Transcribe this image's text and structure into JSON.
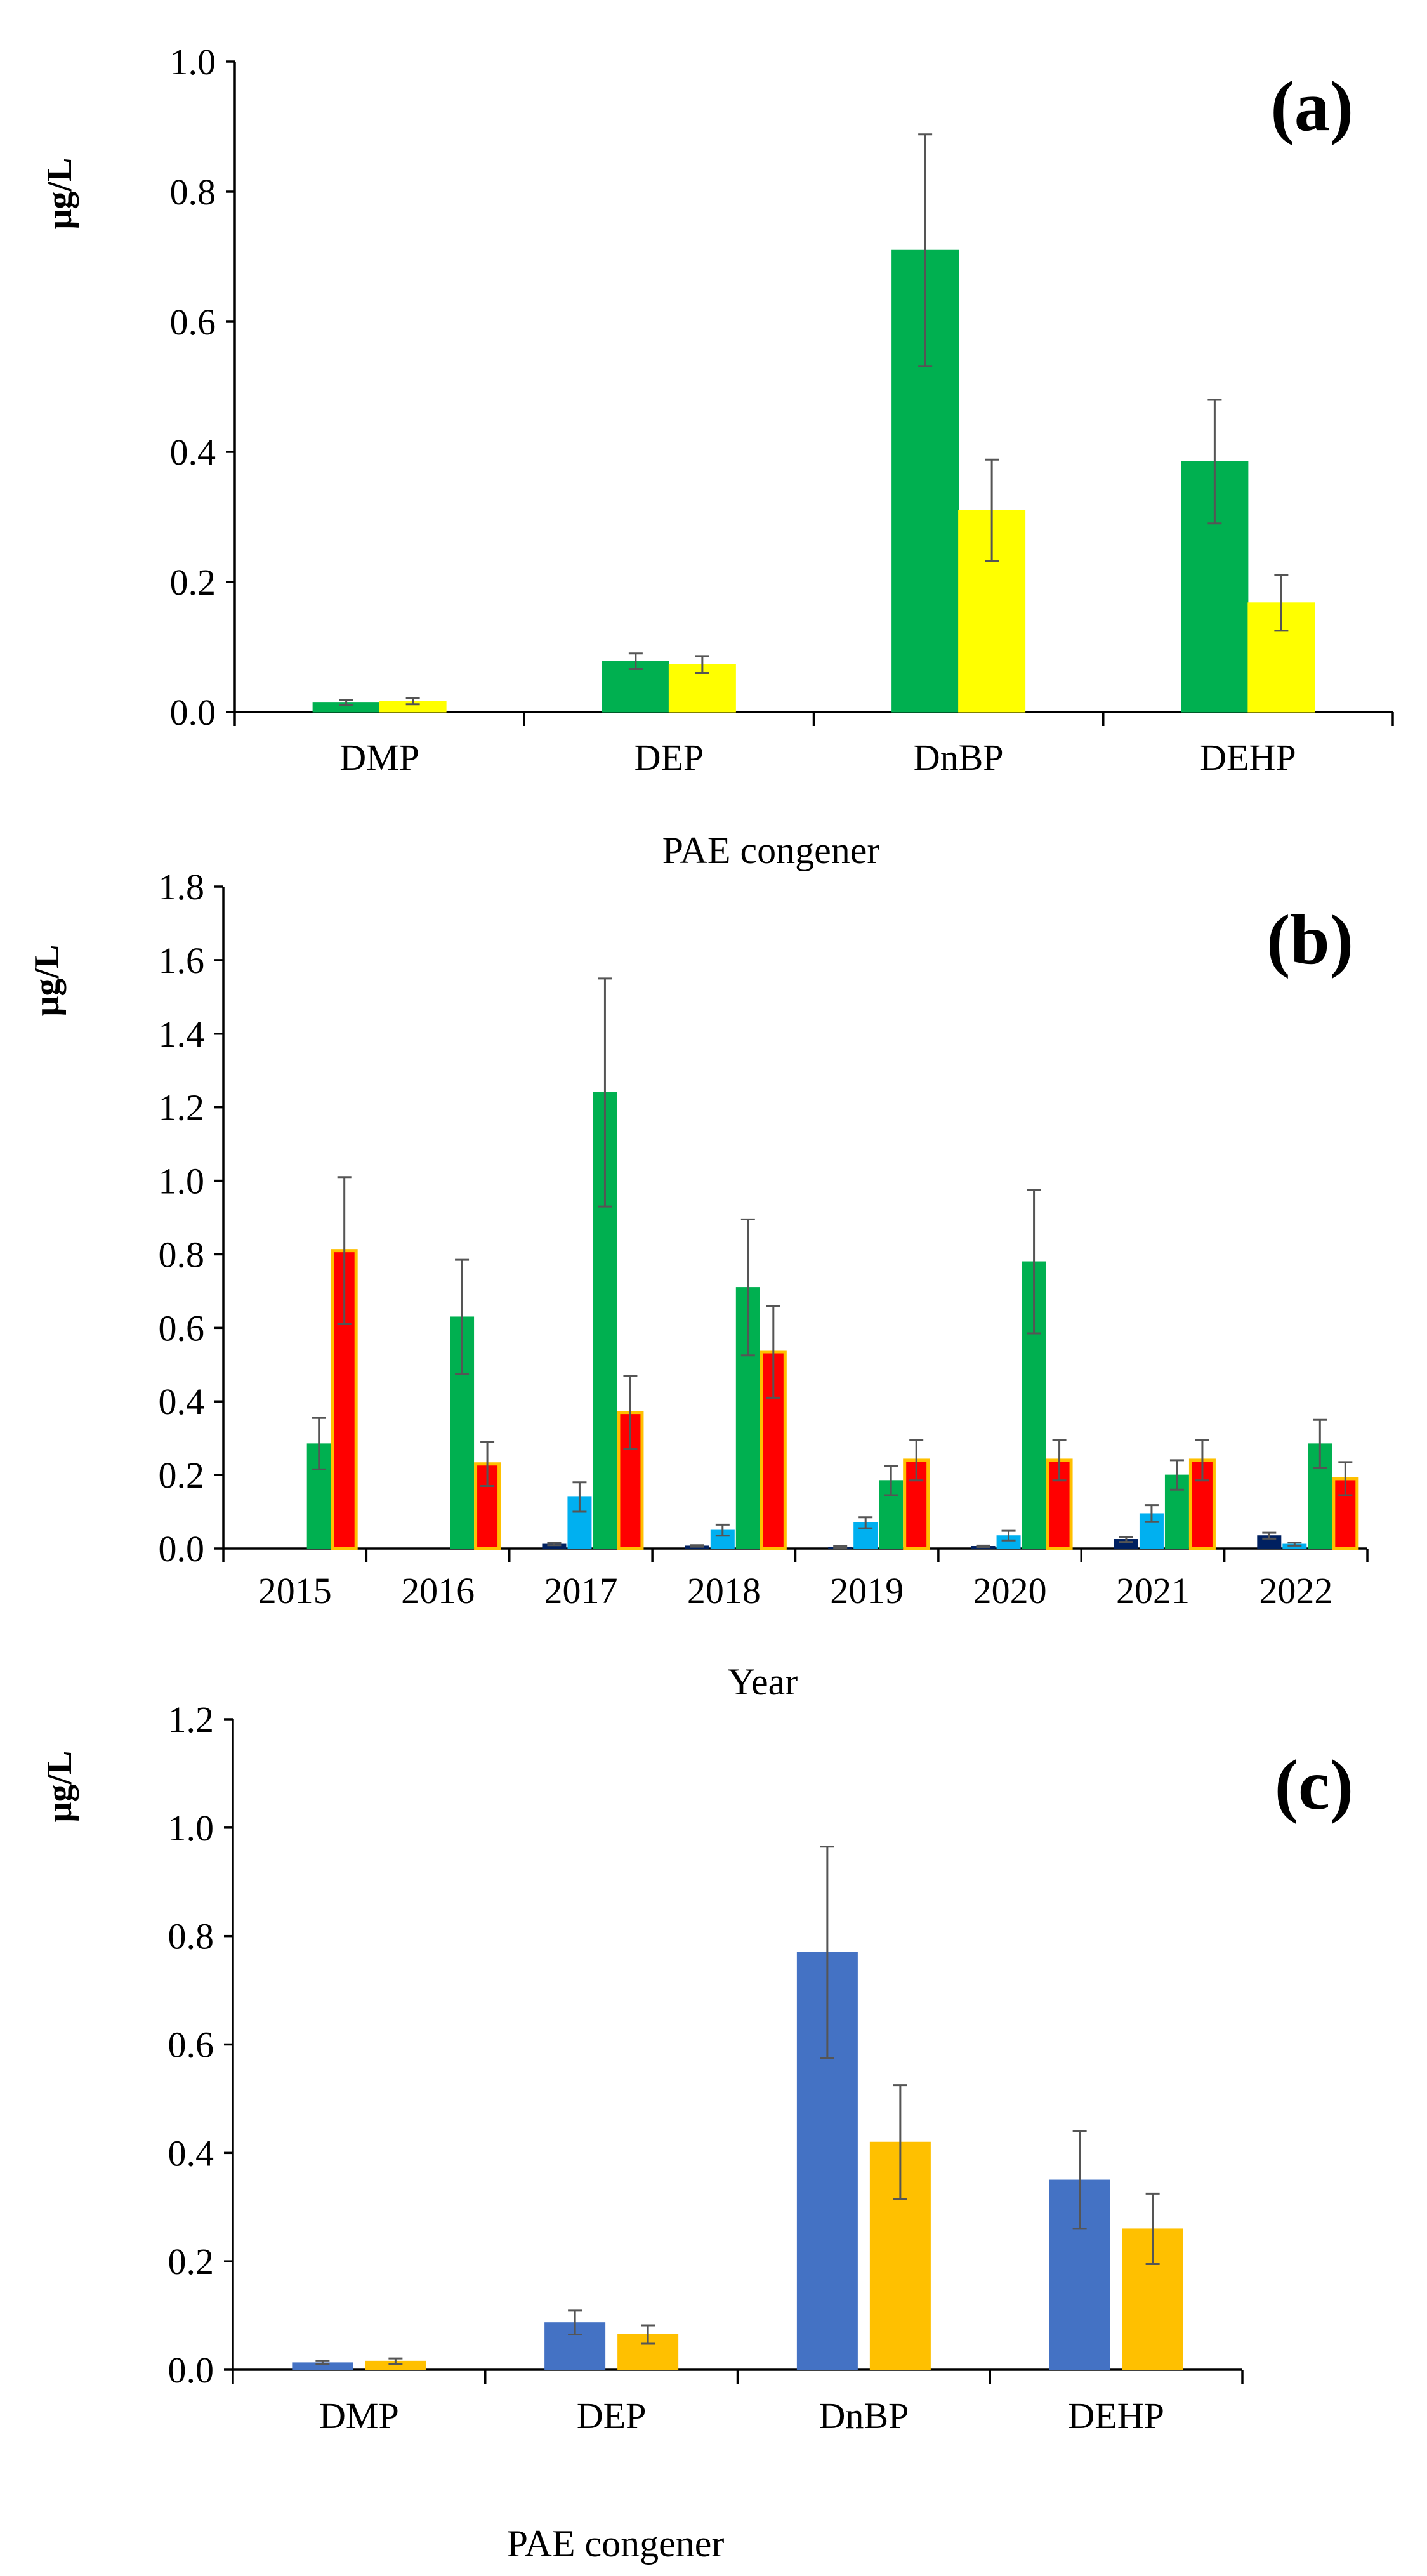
{
  "chart_data": [
    {
      "type": "bar",
      "panel_label": "(a)",
      "ylabel": "μg/L",
      "xlabel": "PAE congener",
      "ylim": [
        0,
        1.0
      ],
      "y_ticks": [
        "0.0",
        "0.2",
        "0.4",
        "0.6",
        "0.8",
        "1.0"
      ],
      "categories": [
        "DMP",
        "DEP",
        "DnBP",
        "DEHP"
      ],
      "series": [
        {
          "values": [
            0.015,
            0.078,
            0.71,
            0.385
          ],
          "errors": [
            0.004,
            0.012,
            0.178,
            0.095
          ],
          "color": "#00b050",
          "edge": "#00b050"
        },
        {
          "values": [
            0.017,
            0.073,
            0.31,
            0.168
          ],
          "errors": [
            0.005,
            0.013,
            0.078,
            0.043
          ],
          "color": "#ffff00",
          "edge": "#ffff00"
        }
      ]
    },
    {
      "type": "bar",
      "panel_label": "(b)",
      "ylabel": "μg/L",
      "xlabel": "Year",
      "ylim": [
        0,
        1.8
      ],
      "y_ticks": [
        "0.0",
        "0.2",
        "0.4",
        "0.6",
        "0.8",
        "1.0",
        "1.2",
        "1.4",
        "1.6",
        "1.8"
      ],
      "categories": [
        "2015",
        "2016",
        "2017",
        "2018",
        "2019",
        "2020",
        "2021",
        "2022"
      ],
      "series": [
        {
          "values": [
            0,
            0,
            0.012,
            0.007,
            0.004,
            0.006,
            0.025,
            0.035
          ],
          "errors": [
            0,
            0,
            0.003,
            0.002,
            0.002,
            0.002,
            0.007,
            0.008
          ],
          "color": "#002060",
          "edge": "#002060"
        },
        {
          "values": [
            0,
            0,
            0.14,
            0.05,
            0.07,
            0.035,
            0.095,
            0.012
          ],
          "errors": [
            0,
            0,
            0.04,
            0.015,
            0.015,
            0.013,
            0.023,
            0.004
          ],
          "color": "#00b0f0",
          "edge": "#00b0f0"
        },
        {
          "values": [
            0.285,
            0.63,
            1.24,
            0.71,
            0.185,
            0.78,
            0.2,
            0.285
          ],
          "errors": [
            0.07,
            0.155,
            0.31,
            0.185,
            0.04,
            0.195,
            0.04,
            0.065
          ],
          "color": "#00b050",
          "edge": "#00b050"
        },
        {
          "values": [
            0.81,
            0.23,
            0.37,
            0.535,
            0.24,
            0.24,
            0.24,
            0.19
          ],
          "errors": [
            0.2,
            0.06,
            0.1,
            0.125,
            0.055,
            0.055,
            0.055,
            0.045
          ],
          "color": "#ff0000",
          "edge": "#ffc000"
        }
      ]
    },
    {
      "type": "bar",
      "panel_label": "(c)",
      "ylabel": "μg/L",
      "xlabel": "PAE congener",
      "ylim": [
        0,
        1.2
      ],
      "y_ticks": [
        "0.0",
        "0.2",
        "0.4",
        "0.6",
        "0.8",
        "1.0",
        "1.2"
      ],
      "categories": [
        "DMP",
        "DEP",
        "DnBP",
        "DEHP"
      ],
      "series": [
        {
          "values": [
            0.013,
            0.087,
            0.77,
            0.35
          ],
          "errors": [
            0.003,
            0.022,
            0.195,
            0.09
          ],
          "color": "#4472c4",
          "edge": "#4472c4"
        },
        {
          "values": [
            0.016,
            0.065,
            0.42,
            0.26
          ],
          "errors": [
            0.005,
            0.017,
            0.105,
            0.065
          ],
          "color": "#ffc000",
          "edge": "#ffc000"
        }
      ]
    }
  ]
}
